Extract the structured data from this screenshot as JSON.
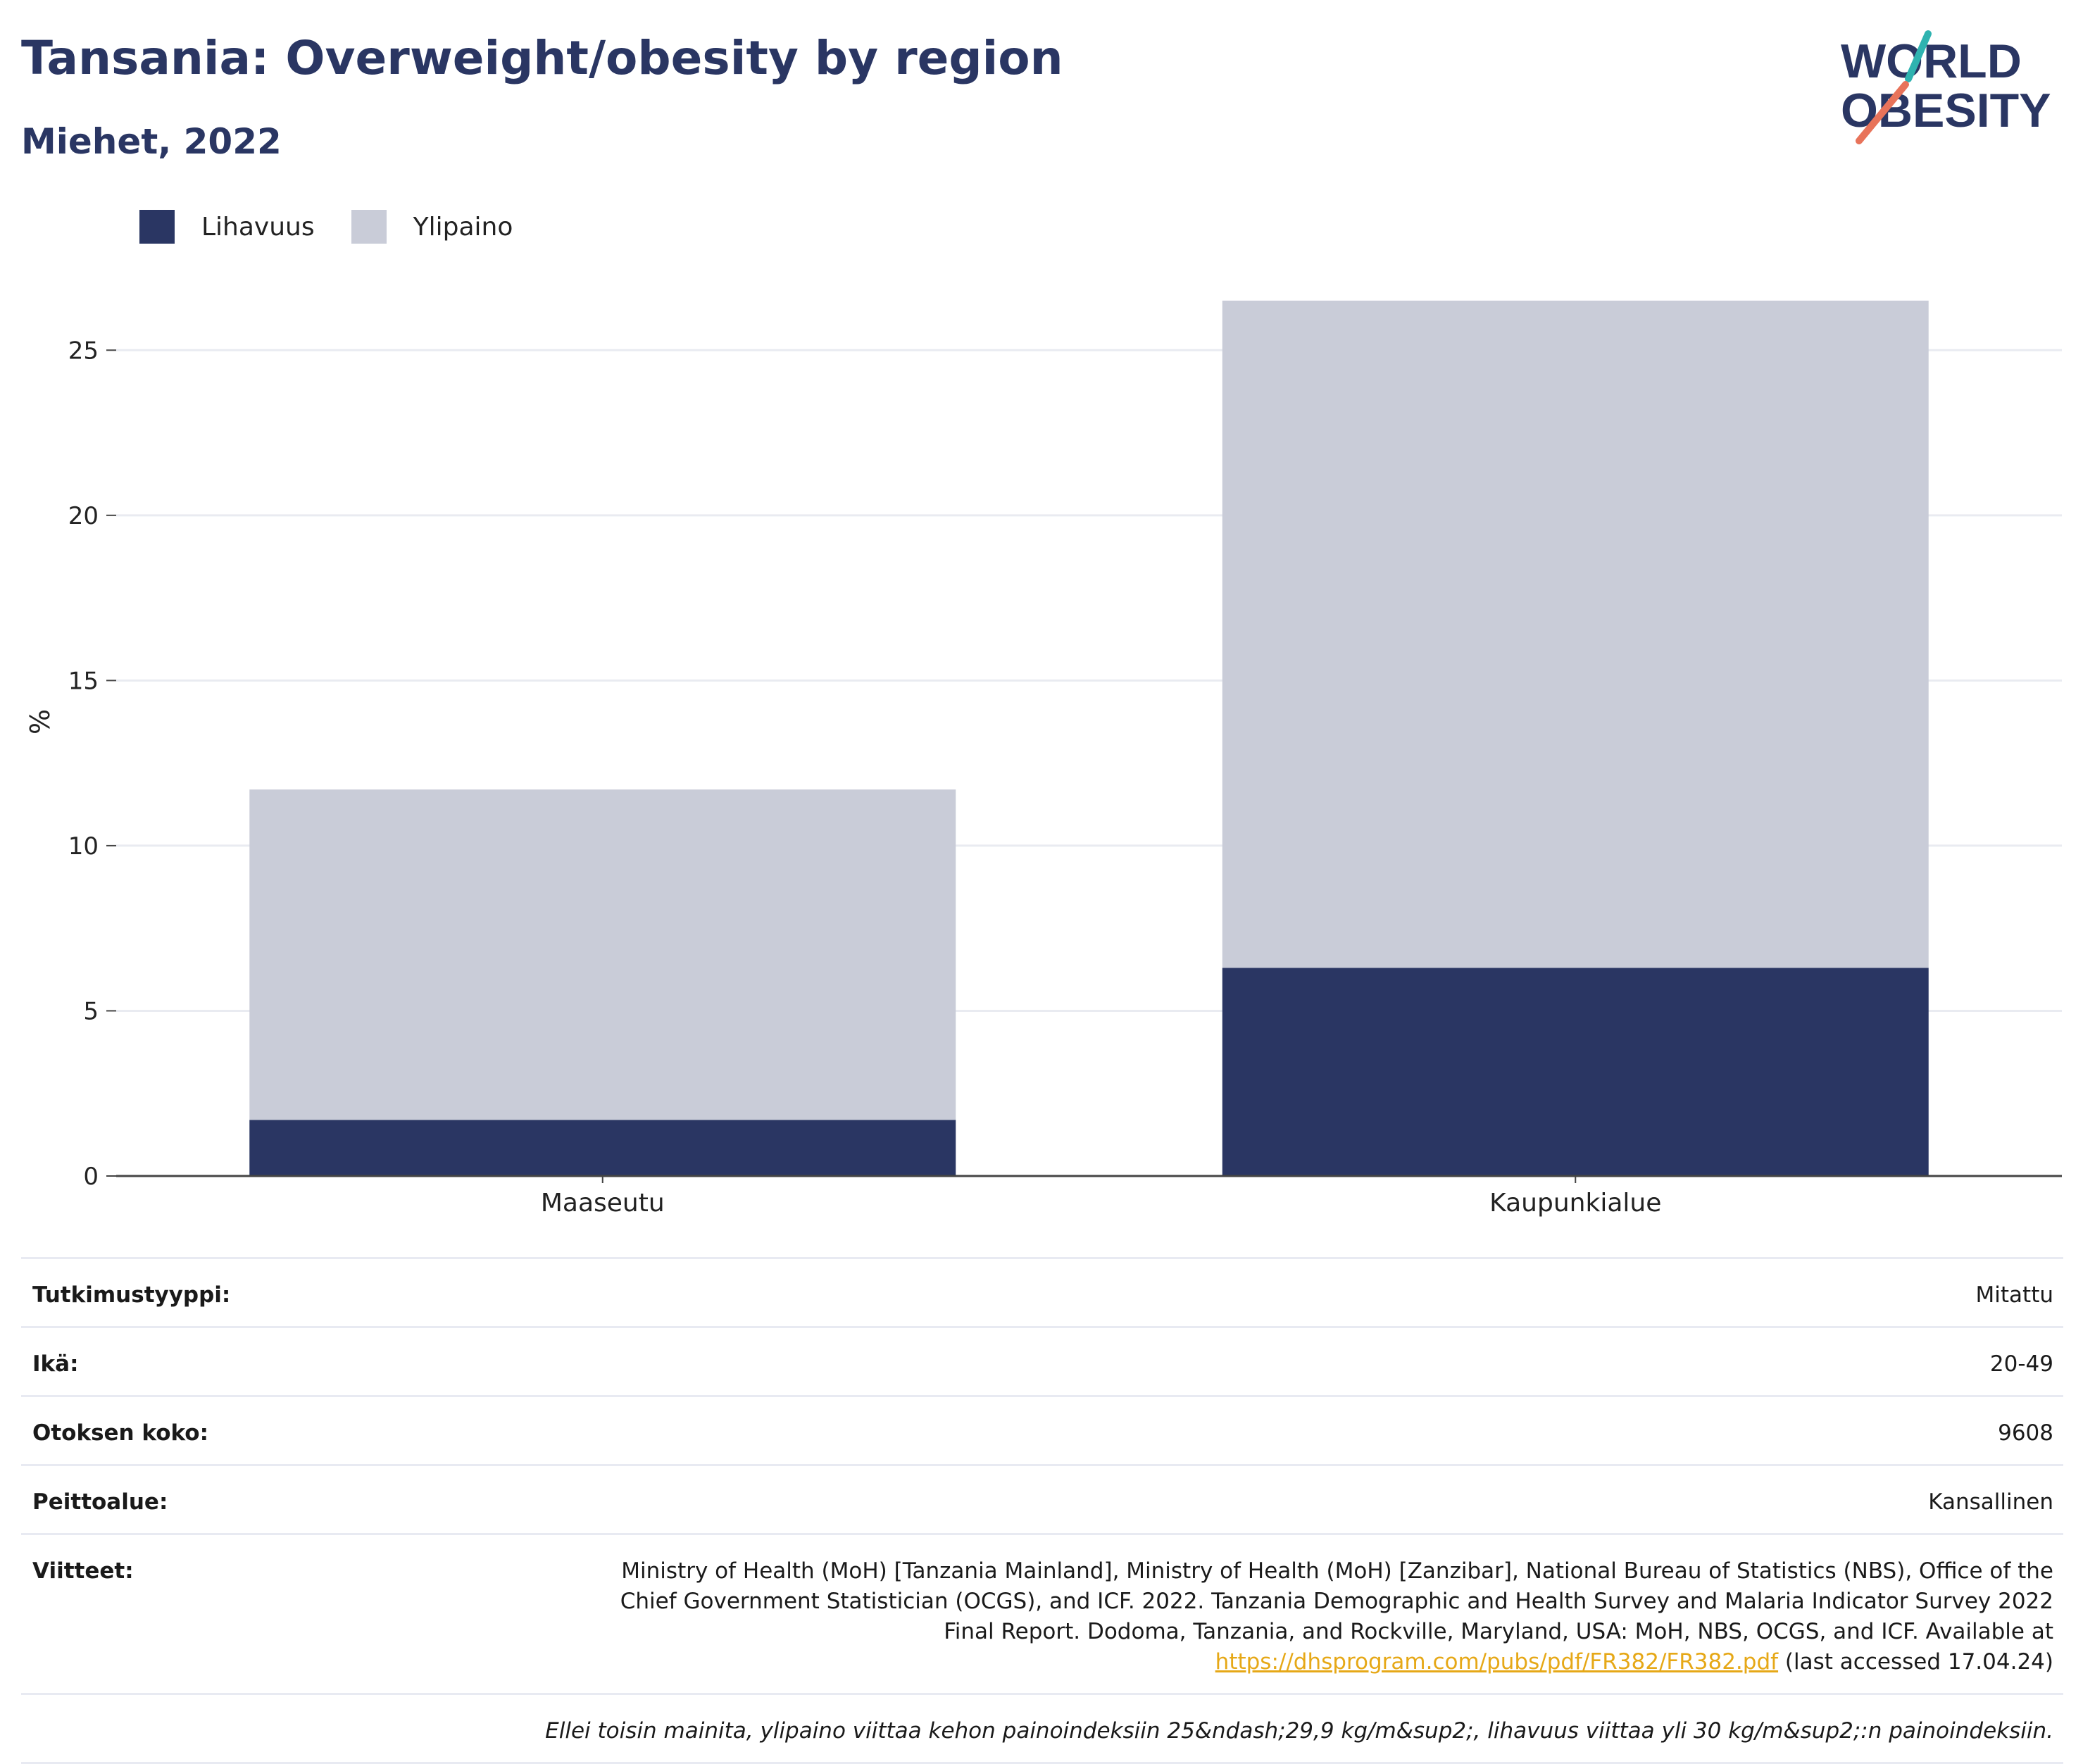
{
  "header": {
    "title": "Tansania: Overweight/obesity by region",
    "subtitle": "Miehet, 2022"
  },
  "logo": {
    "line1": "WORLD",
    "line2": "OBESITY"
  },
  "colors": {
    "obesity": "#2a3663",
    "overweight": "#c9ccd8",
    "link": "#e6a817",
    "accent_teal": "#2fb3b0",
    "accent_coral": "#e8735a"
  },
  "legend": [
    {
      "label": "Lihavuus",
      "color": "#2a3663"
    },
    {
      "label": "Ylipaino",
      "color": "#c9ccd8"
    }
  ],
  "chart_data": {
    "type": "bar",
    "stacked": true,
    "categories": [
      "Maaseutu",
      "Kaupunkialue"
    ],
    "series": [
      {
        "name": "Lihavuus",
        "values": [
          1.7,
          6.3
        ]
      },
      {
        "name": "Ylipaino",
        "values": [
          10.0,
          20.2
        ]
      }
    ],
    "ylabel": "%",
    "ylim": [
      0,
      27.5
    ],
    "yticks": [
      0,
      5,
      10,
      15,
      20,
      25
    ],
    "grid": true,
    "legend_position": "top-left"
  },
  "info": {
    "study_type": {
      "label": "Tutkimustyyppi:",
      "value": "Mitattu"
    },
    "age": {
      "label": "Ikä:",
      "value": "20-49"
    },
    "sample_size": {
      "label": "Otoksen koko:",
      "value": "9608"
    },
    "coverage": {
      "label": "Peittoalue:",
      "value": "Kansallinen"
    },
    "references": {
      "label": "Viitteet:",
      "text": "Ministry of Health (MoH) [Tanzania Mainland], Ministry of Health (MoH) [Zanzibar], National Bureau of Statistics (NBS), Office of the Chief Government Statistician (OCGS), and ICF. 2022. Tanzania Demographic and Health Survey and Malaria Indicator Survey 2022 Final Report. Dodoma, Tanzania, and Rockville, Maryland, USA: MoH, NBS, OCGS, and ICF. Available at",
      "link": "https://dhsprogram.com/pubs/pdf/FR382/FR382.pdf",
      "accessed": "(last accessed 17.04.24)"
    },
    "note": "Ellei toisin mainita, ylipaino viittaa kehon painoindeksiin 25&ndash;29,9 kg/m&sup2;, lihavuus viittaa yli 30 kg/m&sup2;:n painoindeksiin."
  }
}
